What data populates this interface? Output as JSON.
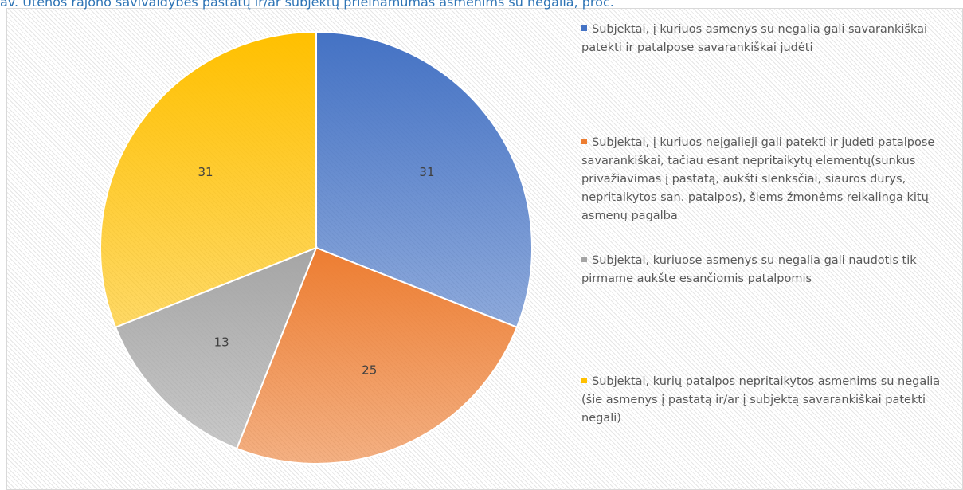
{
  "chart_data": {
    "type": "pie",
    "title": "av. Utenos rajono savivaldybės pastatų ir/ar subjektų prieinamumas asmenims su negalia, proc.",
    "categories": [
      "Subjektai, į kuriuos asmenys su negalia  gali savarankiškai patekti ir patalpose savarankiškai judėti",
      "Subjektai, į kuriuos neįgalieji gali patekti ir judėti patalpose savarankiškai, tačiau esant nepritaikytų elementų(sunkus privažiavimas į pastatą, aukšti slenksčiai, siauros durys, nepritaikytos san. patalpos), šiems žmonėms  reikalinga kitų asmenų pagalba",
      "Subjektai, kuriuose asmenys su negalia gali naudotis tik pirmame aukšte esančiomis patalpomis",
      "Subjektai, kurių patalpos nepritaikytos asmenims su negalia (šie asmenys į pastatą ir/ar į subjektą savarankiškai patekti negali)"
    ],
    "values": [
      31,
      25,
      13,
      31
    ],
    "colors": [
      "#4472c4",
      "#ed7d31",
      "#a5a5a5",
      "#ffc000"
    ],
    "legend": "right"
  }
}
